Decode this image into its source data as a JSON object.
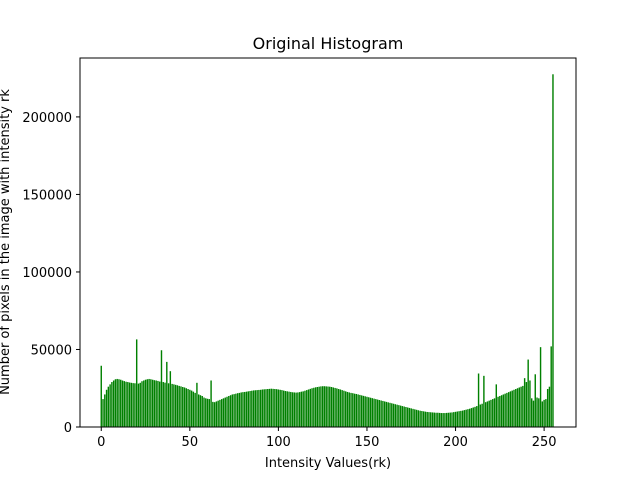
{
  "chart_data": {
    "type": "bar",
    "title": "Original Histogram",
    "xlabel": "Intensity Values(rk)",
    "ylabel": "Number of pixels in the image with intensity rk",
    "xlim": [
      -12,
      268
    ],
    "ylim": [
      0,
      238000
    ],
    "x_ticks": [
      0,
      50,
      100,
      150,
      200,
      250
    ],
    "y_ticks": [
      0,
      50000,
      100000,
      150000,
      200000
    ],
    "grid": false,
    "bar_color": "#008000",
    "x": [
      0,
      1,
      2,
      3,
      4,
      5,
      6,
      7,
      8,
      9,
      10,
      11,
      12,
      13,
      14,
      15,
      16,
      17,
      18,
      19,
      20,
      21,
      22,
      23,
      24,
      25,
      26,
      27,
      28,
      29,
      30,
      31,
      32,
      33,
      34,
      35,
      36,
      37,
      38,
      39,
      40,
      41,
      42,
      43,
      44,
      45,
      46,
      47,
      48,
      49,
      50,
      51,
      52,
      53,
      54,
      55,
      56,
      57,
      58,
      59,
      60,
      61,
      62,
      63,
      64,
      65,
      66,
      67,
      68,
      69,
      70,
      71,
      72,
      73,
      74,
      75,
      76,
      77,
      78,
      79,
      80,
      81,
      82,
      83,
      84,
      85,
      86,
      87,
      88,
      89,
      90,
      91,
      92,
      93,
      94,
      95,
      96,
      97,
      98,
      99,
      100,
      101,
      102,
      103,
      104,
      105,
      106,
      107,
      108,
      109,
      110,
      111,
      112,
      113,
      114,
      115,
      116,
      117,
      118,
      119,
      120,
      121,
      122,
      123,
      124,
      125,
      126,
      127,
      128,
      129,
      130,
      131,
      132,
      133,
      134,
      135,
      136,
      137,
      138,
      139,
      140,
      141,
      142,
      143,
      144,
      145,
      146,
      147,
      148,
      149,
      150,
      151,
      152,
      153,
      154,
      155,
      156,
      157,
      158,
      159,
      160,
      161,
      162,
      163,
      164,
      165,
      166,
      167,
      168,
      169,
      170,
      171,
      172,
      173,
      174,
      175,
      176,
      177,
      178,
      179,
      180,
      181,
      182,
      183,
      184,
      185,
      186,
      187,
      188,
      189,
      190,
      191,
      192,
      193,
      194,
      195,
      196,
      197,
      198,
      199,
      200,
      201,
      202,
      203,
      204,
      205,
      206,
      207,
      208,
      209,
      210,
      211,
      212,
      213,
      214,
      215,
      216,
      217,
      218,
      219,
      220,
      221,
      222,
      223,
      224,
      225,
      226,
      227,
      228,
      229,
      230,
      231,
      232,
      233,
      234,
      235,
      236,
      237,
      238,
      239,
      240,
      241,
      242,
      243,
      244,
      245,
      246,
      247,
      248,
      249,
      250,
      251,
      252,
      253,
      254,
      255
    ],
    "values": [
      39500,
      18000,
      21000,
      24000,
      26000,
      27500,
      29000,
      30000,
      30800,
      31000,
      30800,
      30500,
      30000,
      29600,
      29200,
      29000,
      28700,
      28500,
      28300,
      28200,
      56500,
      28000,
      28500,
      29500,
      30000,
      30500,
      30800,
      31000,
      30800,
      30500,
      30200,
      30000,
      29700,
      29300,
      49500,
      29000,
      28600,
      42000,
      28200,
      36000,
      27800,
      27500,
      27200,
      26900,
      26500,
      26200,
      25800,
      25500,
      25000,
      24500,
      24000,
      23500,
      22800,
      22000,
      28500,
      21000,
      20500,
      20000,
      19000,
      18500,
      18200,
      18000,
      30000,
      16200,
      16000,
      16500,
      17000,
      17500,
      18000,
      18500,
      19000,
      19500,
      20000,
      20500,
      21000,
      21200,
      21500,
      21800,
      22000,
      22300,
      22500,
      22600,
      22800,
      23000,
      23200,
      23400,
      23600,
      23700,
      23800,
      23900,
      24000,
      24200,
      24300,
      24400,
      24500,
      24600,
      24700,
      24600,
      24500,
      24400,
      24200,
      24000,
      23800,
      23500,
      23200,
      23000,
      22800,
      22600,
      22400,
      22300,
      22200,
      22300,
      22500,
      22800,
      23000,
      23400,
      23800,
      24200,
      24600,
      25000,
      25300,
      25600,
      25800,
      26000,
      26200,
      26300,
      26300,
      26200,
      26100,
      26000,
      25800,
      25500,
      25200,
      24900,
      24500,
      24200,
      23800,
      23400,
      23000,
      22600,
      22300,
      22000,
      21800,
      21500,
      21300,
      21000,
      20700,
      20400,
      20100,
      19800,
      19500,
      19200,
      18900,
      18600,
      18300,
      18000,
      17700,
      17400,
      17100,
      16800,
      16500,
      16200,
      15900,
      15600,
      15300,
      15000,
      14700,
      14400,
      14100,
      13800,
      13500,
      13200,
      12900,
      12600,
      12300,
      12000,
      11700,
      11400,
      11100,
      10800,
      10500,
      10300,
      10100,
      9900,
      9700,
      9600,
      9500,
      9400,
      9300,
      9200,
      9200,
      9100,
      9000,
      9000,
      9000,
      9100,
      9200,
      9300,
      9400,
      9600,
      9800,
      10000,
      10200,
      10400,
      10600,
      10900,
      11200,
      11500,
      11800,
      12200,
      12600,
      13000,
      13500,
      34500,
      14500,
      15000,
      33000,
      16000,
      16500,
      17000,
      17500,
      18000,
      18500,
      27500,
      19500,
      20000,
      20500,
      21000,
      21500,
      22000,
      22500,
      23000,
      23500,
      24000,
      24500,
      25000,
      25500,
      26000,
      26500,
      31500,
      29000,
      43500,
      30000,
      18500,
      17000,
      34000,
      19000,
      18500,
      51500,
      16500,
      17500,
      18000,
      24500,
      26000,
      52000,
      227500
    ]
  }
}
